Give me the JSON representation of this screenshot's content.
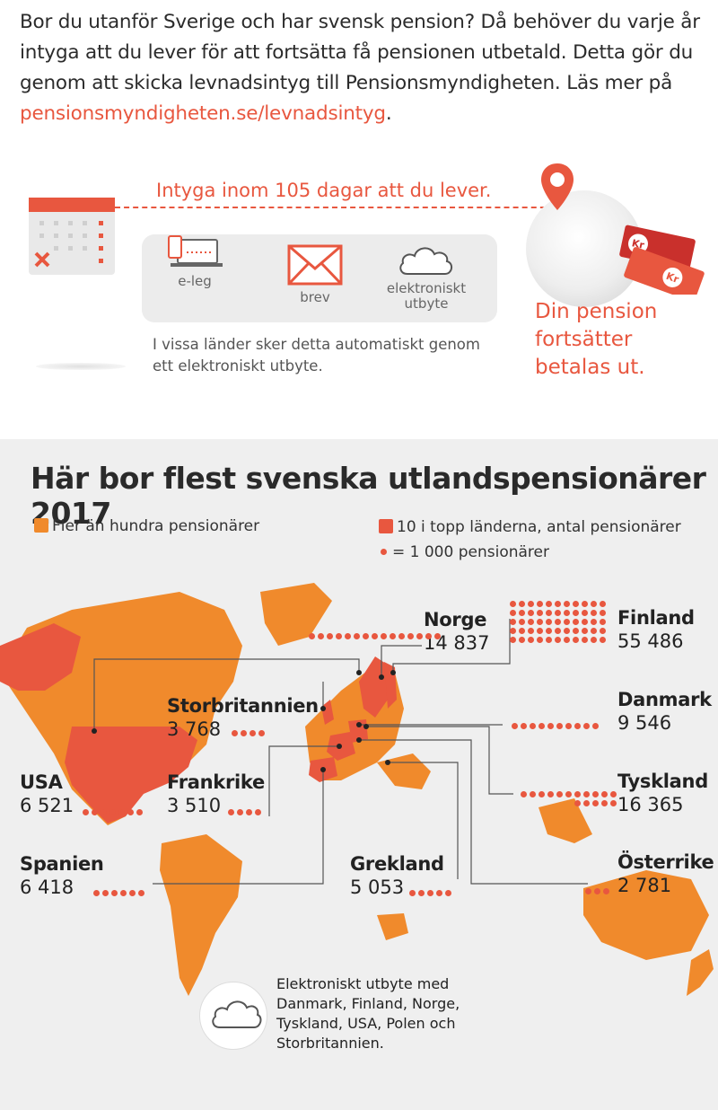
{
  "intro": {
    "text": "Bor du utanför Sverige och har svensk pension? Då behöver du varje år intyga att du lever för att fortsätta få pensionen utbetald. Detta gör du genom att skicka levnadsintyg till Pensionsmyndigheten. Läs mer på ",
    "link": "pensionsmyndigheten.se/levnadsintyg",
    "end": "."
  },
  "process": {
    "headline": "Intyga inom 105 dagar att du lever.",
    "methods": [
      {
        "label": "e-leg",
        "icon": "laptop-phone-icon"
      },
      {
        "label": "brev",
        "icon": "envelope-icon"
      },
      {
        "label1": "elektroniskt",
        "label2": "utbyte",
        "icon": "cloud-icon"
      }
    ],
    "note": "I vissa länder sker detta automatiskt genom ett elektroniskt utbyte.",
    "result_lines": [
      "Din pension",
      "fortsätter",
      "betalas ut."
    ],
    "currency": "Kr"
  },
  "map": {
    "title": "Här bor flest svenska utlandspensionärer 2017",
    "legend": {
      "more_than_hundred": "Fler än hundra pensionärer",
      "top_ten": "10 i topp länderna, antal pensionärer",
      "dot_scale": "= 1 000 pensionärer"
    },
    "countries": [
      {
        "name": "Finland",
        "value": "55 486",
        "dots": 55
      },
      {
        "name": "Norge",
        "value": "14 837",
        "dots": 15
      },
      {
        "name": "Tyskland",
        "value": "16 365",
        "dots": 16
      },
      {
        "name": "Danmark",
        "value": "9 546",
        "dots": 10
      },
      {
        "name": "USA",
        "value": "6 521",
        "dots": 7
      },
      {
        "name": "Spanien",
        "value": "6 418",
        "dots": 6
      },
      {
        "name": "Grekland",
        "value": "5 053",
        "dots": 5
      },
      {
        "name": "Storbritannien",
        "value": "3 768",
        "dots": 4
      },
      {
        "name": "Frankrike",
        "value": "3 510",
        "dots": 4
      },
      {
        "name": "Österrike",
        "value": "2 781",
        "dots": 3
      }
    ],
    "exchange_text": "Elektroniskt utbyte med Danmark, Finland, Norge, Tyskland, USA, Polen och Storbritannien."
  },
  "colors": {
    "accent": "#e8573f",
    "orange": "#f08a2c",
    "red": "#e8573f",
    "grey_bg": "#efefef"
  }
}
